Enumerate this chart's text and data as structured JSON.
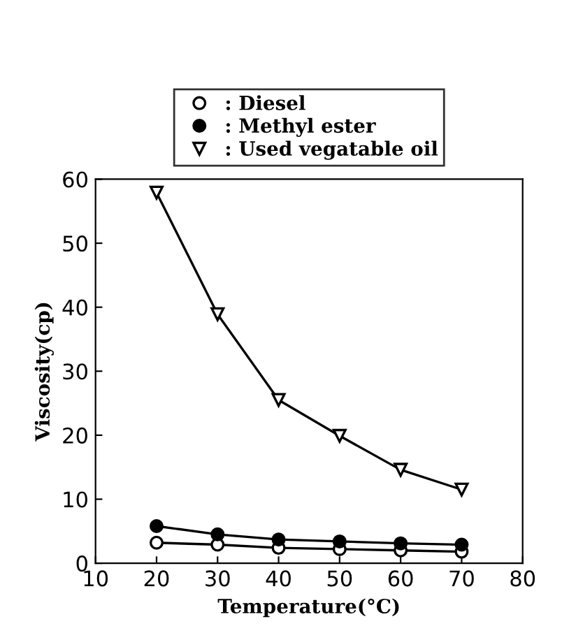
{
  "chart_data": {
    "type": "line",
    "xlabel": "Temperature(°C)",
    "ylabel": "Viscosity(cp)",
    "x": [
      20,
      30,
      40,
      50,
      60,
      70
    ],
    "series": [
      {
        "name": ": Diesel",
        "color": "#000000",
        "marker": "circle_open",
        "values": [
          3.2,
          2.9,
          2.4,
          2.2,
          2.0,
          1.8
        ]
      },
      {
        "name": ": Methyl ester",
        "color": "#000000",
        "marker": "circle",
        "values": [
          5.8,
          4.5,
          3.7,
          3.4,
          3.1,
          2.9
        ]
      },
      {
        "name": ": Used vegatable oil",
        "color": "#000000",
        "marker": "triangle_down_open",
        "values": [
          57.9,
          38.9,
          25.5,
          19.9,
          14.6,
          11.5
        ]
      }
    ],
    "xlim": [
      10,
      80
    ],
    "xticks": [
      10,
      20,
      30,
      40,
      50,
      60,
      70,
      80
    ],
    "ylim": [
      0,
      60
    ],
    "yticks": [
      0,
      10,
      20,
      30,
      40,
      50,
      60
    ],
    "grid": false,
    "legend": "top",
    "line_style": "solid"
  }
}
